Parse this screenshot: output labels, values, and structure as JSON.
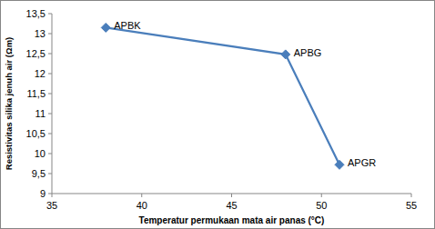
{
  "chart_data": {
    "type": "line",
    "x_label": "Temperatur permukaan mata air panas (°C)",
    "y_label": "Resistivitas silika jenuh air (Ωm)",
    "x": [
      38,
      48,
      51
    ],
    "series": [
      {
        "values": [
          13.15,
          12.48,
          9.72
        ],
        "labels": [
          "APBK",
          "APBG",
          "APGR"
        ],
        "color": "#4a7ebb",
        "marker": "diamond",
        "line_style": "solid"
      }
    ],
    "xlim": [
      35,
      55
    ],
    "xticks": [
      35,
      40,
      45,
      50,
      55
    ],
    "ylim": [
      9,
      13.5
    ],
    "yticks": [
      9,
      {
        "value": 9.5,
        "label": "9,5"
      },
      10,
      {
        "value": 10.5,
        "label": "10,5"
      },
      11,
      {
        "value": 11.5,
        "label": "11,5"
      },
      12,
      {
        "value": 12.5,
        "label": "12,5"
      },
      13,
      {
        "value": 13.5,
        "label": "13,5"
      }
    ],
    "grid": false
  }
}
